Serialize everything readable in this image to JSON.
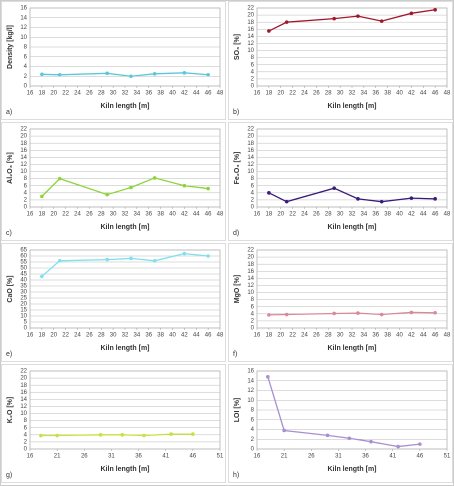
{
  "chart_data": [
    {
      "type": "line",
      "panel_label": "a)",
      "y_label": "Density [kg/l]",
      "x_label": "Kiln length [m]",
      "x": [
        18,
        21,
        29,
        33,
        37,
        42,
        46
      ],
      "values": [
        2.4,
        2.3,
        2.6,
        2.0,
        2.5,
        2.7,
        2.3
      ],
      "color": "#5bc8d8",
      "xlim": [
        16,
        48
      ],
      "xticks": [
        16,
        18,
        20,
        22,
        24,
        26,
        28,
        30,
        32,
        34,
        36,
        38,
        40,
        42,
        44,
        46,
        48
      ],
      "ylim": [
        0,
        16
      ],
      "yticks": [
        0,
        2,
        4,
        6,
        8,
        10,
        12,
        14,
        16
      ],
      "grid": true
    },
    {
      "type": "line",
      "panel_label": "b)",
      "y_label": "SO₃ [%]",
      "x_label": "Kiln length [m]",
      "x": [
        18,
        21,
        29,
        33,
        37,
        42,
        46
      ],
      "values": [
        15.5,
        18,
        19,
        19.7,
        18.3,
        20.5,
        21.5
      ],
      "color": "#a0182a",
      "xlim": [
        16,
        48
      ],
      "xticks": [
        16,
        18,
        20,
        22,
        24,
        26,
        28,
        30,
        32,
        34,
        36,
        38,
        40,
        42,
        44,
        46,
        48
      ],
      "ylim": [
        0,
        22
      ],
      "yticks": [
        0,
        2,
        4,
        6,
        8,
        10,
        12,
        14,
        16,
        18,
        20,
        22
      ],
      "grid": true
    },
    {
      "type": "line",
      "panel_label": "c)",
      "y_label": "Al₂O₃ [%]",
      "x_label": "Kiln length [m]",
      "x": [
        18,
        21,
        29,
        33,
        37,
        42,
        46
      ],
      "values": [
        3,
        8,
        3.5,
        5.5,
        8.2,
        6,
        5.2
      ],
      "color": "#8dd33a",
      "xlim": [
        16,
        48
      ],
      "xticks": [
        16,
        18,
        20,
        22,
        24,
        26,
        28,
        30,
        32,
        34,
        36,
        38,
        40,
        42,
        44,
        46,
        48
      ],
      "ylim": [
        0,
        22
      ],
      "yticks": [
        0,
        2,
        4,
        6,
        8,
        10,
        12,
        14,
        16,
        18,
        20,
        22
      ],
      "grid": true
    },
    {
      "type": "line",
      "panel_label": "d)",
      "y_label": "Fe₂O₃ [%]",
      "x_label": "Kiln length [m]",
      "x": [
        18,
        21,
        29,
        33,
        37,
        42,
        46
      ],
      "values": [
        4,
        1.5,
        5.3,
        2.3,
        1.5,
        2.5,
        2.3
      ],
      "color": "#3a1a7a",
      "xlim": [
        16,
        48
      ],
      "xticks": [
        16,
        18,
        20,
        22,
        24,
        26,
        28,
        30,
        32,
        34,
        36,
        38,
        40,
        42,
        44,
        46,
        48
      ],
      "ylim": [
        0,
        22
      ],
      "yticks": [
        0,
        2,
        4,
        6,
        8,
        10,
        12,
        14,
        16,
        18,
        20,
        22
      ],
      "grid": true
    },
    {
      "type": "line",
      "panel_label": "e)",
      "y_label": "CaO [%]",
      "x_label": "Kiln length [m]",
      "x": [
        18,
        21,
        29,
        33,
        37,
        42,
        46
      ],
      "values": [
        43,
        56,
        57,
        58,
        56,
        62,
        60
      ],
      "color": "#7fe0ee",
      "xlim": [
        16,
        48
      ],
      "xticks": [
        16,
        18,
        20,
        22,
        24,
        26,
        28,
        30,
        32,
        34,
        36,
        38,
        40,
        42,
        44,
        46,
        48
      ],
      "ylim": [
        0,
        65
      ],
      "yticks": [
        0,
        5,
        10,
        15,
        20,
        25,
        30,
        35,
        40,
        45,
        50,
        55,
        60,
        65
      ],
      "grid": true
    },
    {
      "type": "line",
      "panel_label": "f)",
      "y_label": "MgO [%]",
      "x_label": "Kiln length [m]",
      "x": [
        18,
        21,
        29,
        33,
        37,
        42,
        46
      ],
      "values": [
        3.7,
        3.8,
        4.1,
        4.2,
        3.8,
        4.4,
        4.3
      ],
      "color": "#d88a9a",
      "xlim": [
        16,
        48
      ],
      "xticks": [
        16,
        18,
        20,
        22,
        24,
        26,
        28,
        30,
        32,
        34,
        36,
        38,
        40,
        42,
        44,
        46,
        48
      ],
      "ylim": [
        0,
        22
      ],
      "yticks": [
        0,
        2,
        4,
        6,
        8,
        10,
        12,
        14,
        16,
        18,
        20,
        22
      ],
      "grid": true
    },
    {
      "type": "line",
      "panel_label": "g)",
      "y_label": "K₂O [%]",
      "x_label": "Kiln length [m]",
      "x": [
        18,
        21,
        29,
        33,
        37,
        42,
        46
      ],
      "values": [
        3.8,
        3.8,
        4,
        4,
        3.8,
        4.2,
        4.2
      ],
      "color": "#c8e040",
      "xlim": [
        16,
        51
      ],
      "xticks": [
        16,
        21,
        26,
        31,
        36,
        41,
        46,
        51
      ],
      "ylim": [
        0,
        22
      ],
      "yticks": [
        0,
        2,
        4,
        6,
        8,
        10,
        12,
        14,
        16,
        18,
        20,
        22
      ],
      "grid": true
    },
    {
      "type": "line",
      "panel_label": "h)",
      "y_label": "LOI [%]",
      "x_label": "Kiln length [m]",
      "x": [
        18,
        21,
        29,
        33,
        37,
        42,
        46
      ],
      "values": [
        14.8,
        3.8,
        2.8,
        2.2,
        1.5,
        0.5,
        1
      ],
      "color": "#a890d0",
      "xlim": [
        16,
        51
      ],
      "xticks": [
        16,
        21,
        26,
        31,
        36,
        41,
        46,
        51
      ],
      "ylim": [
        0,
        16
      ],
      "yticks": [
        0,
        2,
        4,
        6,
        8,
        10,
        12,
        14,
        16
      ],
      "grid": true
    }
  ]
}
